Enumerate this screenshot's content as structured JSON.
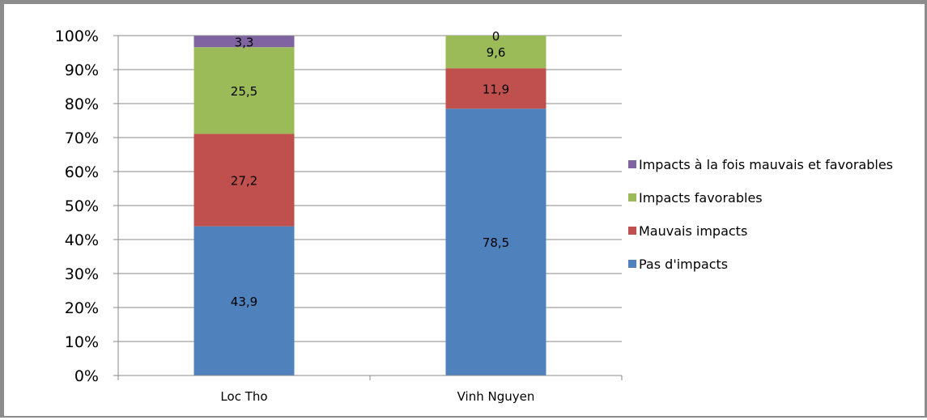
{
  "chart_data": {
    "type": "bar",
    "stacked": true,
    "percent_stacked": true,
    "categories": [
      "Loc Tho",
      "Vinh Nguyen"
    ],
    "series": [
      {
        "name": "Pas d'impacts",
        "values": [
          43.9,
          78.5
        ],
        "labels": [
          "43,9",
          "78,5"
        ],
        "color": "#4f81bd"
      },
      {
        "name": "Mauvais impacts",
        "values": [
          27.2,
          11.9
        ],
        "labels": [
          "27,2",
          "11,9"
        ],
        "color": "#c0504d"
      },
      {
        "name": "Impacts favorables",
        "values": [
          25.5,
          9.6
        ],
        "labels": [
          "25,5",
          "9,6"
        ],
        "color": "#9bbb59"
      },
      {
        "name": "Impacts à la fois mauvais et favorables",
        "values": [
          3.3,
          0
        ],
        "labels": [
          "3,3",
          "0"
        ],
        "color": "#8064a2"
      }
    ],
    "yticks": [
      "0%",
      "10%",
      "20%",
      "30%",
      "40%",
      "50%",
      "60%",
      "70%",
      "80%",
      "90%",
      "100%"
    ],
    "ylim": [
      0,
      100
    ],
    "grid": true,
    "legend": "right",
    "legend_order": [
      "Impacts à la fois mauvais et favorables",
      "Impacts favorables",
      "Mauvais impacts",
      "Pas d'impacts"
    ]
  }
}
